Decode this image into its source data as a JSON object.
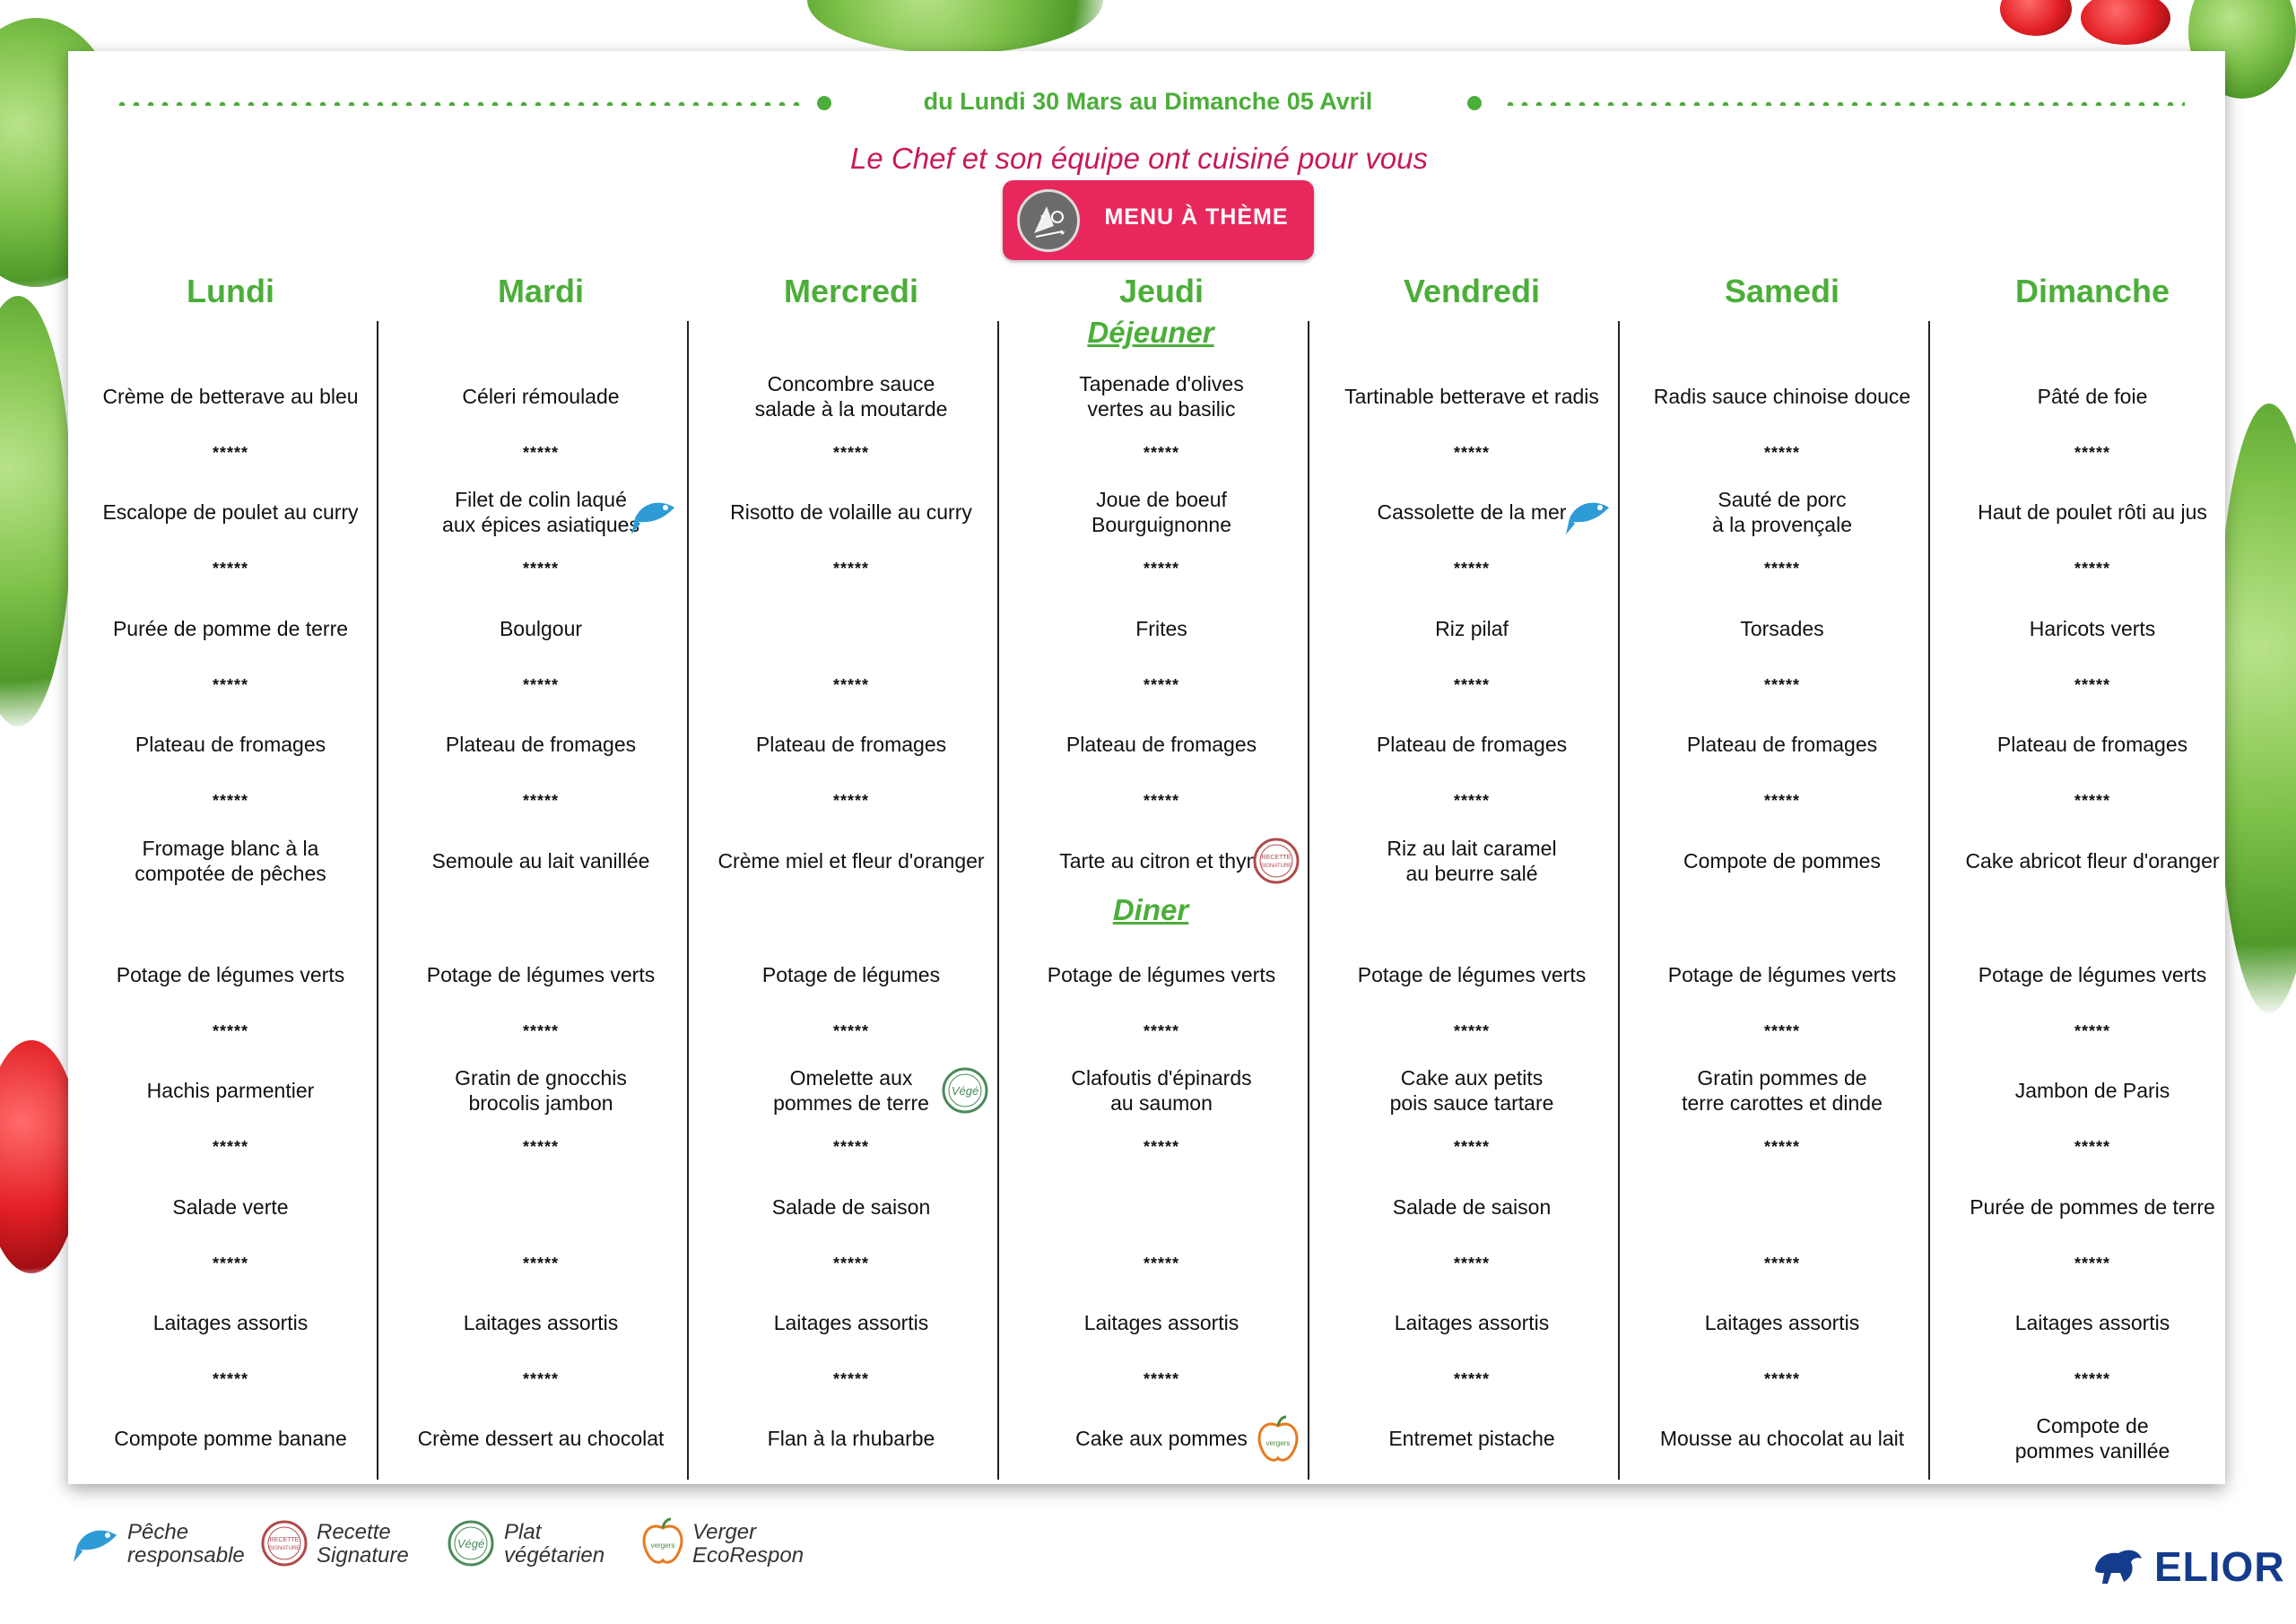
{
  "header": {
    "date_range": "du Lundi 30 Mars au Dimanche 05 Avril",
    "subtitle": "Le Chef et son équipe ont cuisiné pour vous",
    "theme_button": "MENU À THÈME"
  },
  "meal_labels": {
    "lunch": "Déjeuner",
    "dinner": "Diner"
  },
  "separator": "*****",
  "days": [
    {
      "name": "Lundi",
      "lunch": [
        "Crème de betterave au bleu",
        "Escalope de poulet au curry",
        "Purée de pomme de terre",
        "Plateau de fromages",
        "Fromage blanc à la\ncompotée de pêches"
      ],
      "dinner": [
        "Potage de légumes verts",
        "Hachis parmentier",
        "Salade verte",
        "Laitages assortis",
        "Compote pomme banane"
      ]
    },
    {
      "name": "Mardi",
      "lunch": [
        "Céleri rémoulade",
        "Filet de colin laqué\naux épices asiatiques",
        "Boulgour",
        "Plateau de fromages",
        "Semoule au lait vanillée"
      ],
      "dinner": [
        "Potage de légumes verts",
        "Gratin de gnocchis\nbrocolis jambon",
        "",
        "Laitages assortis",
        "Crème dessert au chocolat"
      ]
    },
    {
      "name": "Mercredi",
      "lunch": [
        "Concombre sauce\nsalade à la moutarde",
        "Risotto de volaille au curry",
        "",
        "Plateau de fromages",
        "Crème miel et fleur d'oranger"
      ],
      "dinner": [
        "Potage de légumes",
        "Omelette aux\npommes de terre",
        "Salade de saison",
        "Laitages assortis",
        "Flan à la rhubarbe"
      ]
    },
    {
      "name": "Jeudi",
      "lunch": [
        "Tapenade d'olives\nvertes au basilic",
        "Joue de boeuf\nBourguignonne",
        "Frites",
        "Plateau de fromages",
        "Tarte au citron et thym"
      ],
      "dinner": [
        "Potage de légumes verts",
        "Clafoutis d'épinards\nau saumon",
        "",
        "Laitages assortis",
        "Cake aux pommes"
      ]
    },
    {
      "name": "Vendredi",
      "lunch": [
        "Tartinable betterave et radis",
        "Cassolette de la mer",
        "Riz pilaf",
        "Plateau de fromages",
        "Riz au lait caramel\nau beurre salé"
      ],
      "dinner": [
        "Potage de légumes verts",
        "Cake aux petits\npois sauce tartare",
        "Salade de saison",
        "Laitages assortis",
        "Entremet pistache"
      ]
    },
    {
      "name": "Samedi",
      "lunch": [
        "Radis sauce chinoise douce",
        "Sauté de porc\nà la provençale",
        "Torsades",
        "Plateau de fromages",
        "Compote de pommes"
      ],
      "dinner": [
        "Potage de légumes verts",
        "Gratin pommes de\nterre carottes et dinde",
        "",
        "Laitages assortis",
        "Mousse au chocolat au lait"
      ]
    },
    {
      "name": "Dimanche",
      "lunch": [
        "Pâté de foie",
        "Haut de poulet rôti au jus",
        "Haricots verts",
        "Plateau de fromages",
        "Cake abricot fleur d'oranger"
      ],
      "dinner": [
        "Potage de légumes verts",
        "Jambon de Paris",
        "Purée de pommes de terre",
        "Laitages assortis",
        "Compote de\npommes vanillée"
      ]
    }
  ],
  "badges": {
    "recette_text": "RECETTE\nSIGNATURE",
    "vege_text": "Végé",
    "verger_text": "vergers"
  },
  "legend": [
    {
      "icon": "fish-icon",
      "text": "Pêche\nresponsable"
    },
    {
      "icon": "recette-signature-icon",
      "text": "Recette\nSignature"
    },
    {
      "icon": "vege-icon",
      "text": "Plat\nvégétarien"
    },
    {
      "icon": "apple-icon",
      "text": "Verger\nEcoRespon"
    }
  ],
  "brand": "ELIOR",
  "colors": {
    "green": "#4cae3a",
    "pink": "#e8285c",
    "subtitle": "#c8195a",
    "fish": "#2e9bd6",
    "brand": "#143b8c"
  }
}
